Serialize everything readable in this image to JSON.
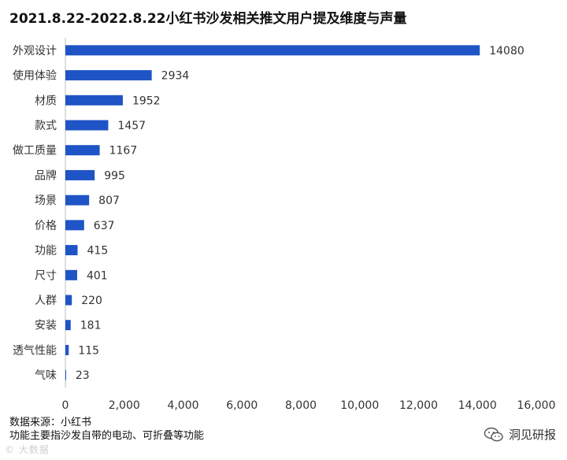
{
  "title": "2021.8.22-2022.8.22小红书沙发相关推文用户提及维度与声量",
  "footer": {
    "source": "数据来源：小红书",
    "note": "功能主要指沙发自带的电动、可折叠等功能"
  },
  "watermark": {
    "text": "洞见研报",
    "icon": "wechat-icon"
  },
  "faint_watermark": "© 大数据",
  "colors": {
    "bar": "#1f54c6",
    "axis": "#bfbfbf",
    "text": "#333333"
  },
  "chart_data": {
    "type": "bar",
    "orientation": "horizontal",
    "categories": [
      "外观设计",
      "使用体验",
      "材质",
      "款式",
      "做工质量",
      "品牌",
      "场景",
      "价格",
      "功能",
      "尺寸",
      "人群",
      "安装",
      "透气性能",
      "气味"
    ],
    "values": [
      14080,
      2934,
      1952,
      1457,
      1167,
      995,
      807,
      637,
      415,
      401,
      220,
      181,
      115,
      23
    ],
    "xlim": [
      0,
      16000
    ],
    "x_ticks": [
      0,
      2000,
      4000,
      6000,
      8000,
      10000,
      12000,
      14000,
      16000
    ],
    "x_tick_labels": [
      "0",
      "2,000",
      "4,000",
      "6,000",
      "8,000",
      "10,000",
      "12,000",
      "14,000",
      "16,000"
    ],
    "data_labels": true,
    "grid": false,
    "legend": "none"
  }
}
